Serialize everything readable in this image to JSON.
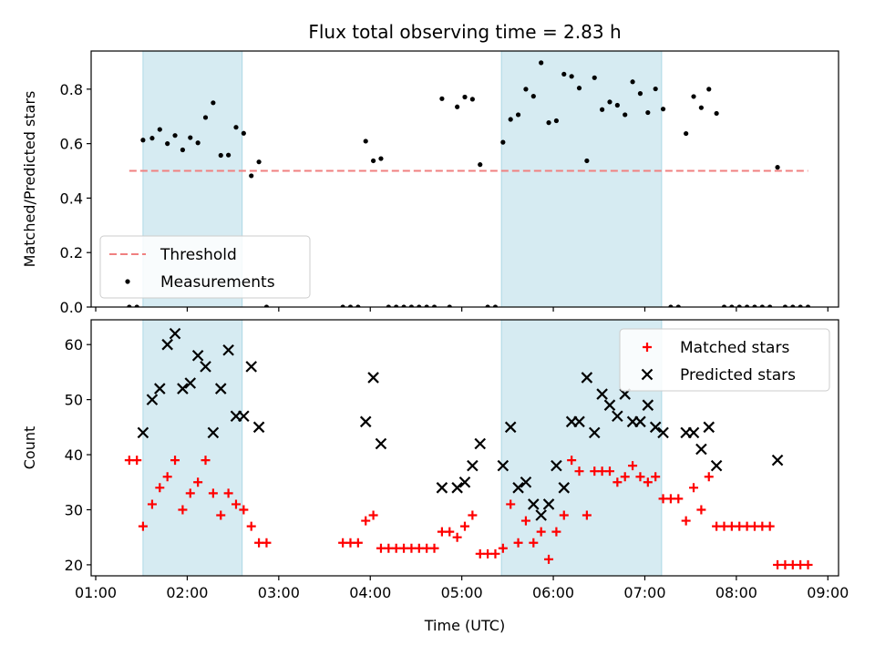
{
  "figure": {
    "title": "Flux total observing time = 2.83 h"
  },
  "chart_data": [
    {
      "type": "scatter",
      "title": "Flux total observing time = 2.83 h",
      "xlabel": "",
      "ylabel": "Matched/Predicted stars",
      "xlim": [
        "00:57",
        "09:07"
      ],
      "ylim": [
        0,
        0.94
      ],
      "xticks": [
        "01:00",
        "02:00",
        "03:00",
        "04:00",
        "05:00",
        "06:00",
        "07:00",
        "08:00",
        "09:00"
      ],
      "yticks": [
        "0.0",
        "0.2",
        "0.4",
        "0.6",
        "0.8"
      ],
      "shaded_intervals": [
        [
          "01:31",
          "02:36"
        ],
        [
          "05:26",
          "07:11"
        ]
      ],
      "legend": {
        "position": "lower-left",
        "entries": [
          "Threshold",
          "Measurements"
        ]
      },
      "series": [
        {
          "name": "Threshold",
          "style": "dashed-line",
          "color": "#f08080",
          "points": [
            [
              "01:22",
              0.5
            ],
            [
              "08:47",
              0.5
            ]
          ]
        },
        {
          "name": "Measurements",
          "style": "dot",
          "color": "#000000",
          "points": [
            [
              "01:22",
              0.0
            ],
            [
              "01:27",
              0.0
            ],
            [
              "01:31",
              0.613
            ],
            [
              "01:37",
              0.62
            ],
            [
              "01:42",
              0.652
            ],
            [
              "01:47",
              0.6
            ],
            [
              "01:52",
              0.63
            ],
            [
              "01:57",
              0.577
            ],
            [
              "02:02",
              0.622
            ],
            [
              "02:07",
              0.603
            ],
            [
              "02:12",
              0.696
            ],
            [
              "02:17",
              0.75
            ],
            [
              "02:22",
              0.557
            ],
            [
              "02:27",
              0.558
            ],
            [
              "02:32",
              0.66
            ],
            [
              "02:37",
              0.638
            ],
            [
              "02:42",
              0.482
            ],
            [
              "02:47",
              0.533
            ],
            [
              "02:52",
              0.0
            ],
            [
              "03:42",
              0.0
            ],
            [
              "03:47",
              0.0
            ],
            [
              "03:52",
              0.0
            ],
            [
              "03:57",
              0.609
            ],
            [
              "04:02",
              0.537
            ],
            [
              "04:07",
              0.545
            ],
            [
              "04:12",
              0.0
            ],
            [
              "04:17",
              0.0
            ],
            [
              "04:22",
              0.0
            ],
            [
              "04:27",
              0.0
            ],
            [
              "04:32",
              0.0
            ],
            [
              "04:37",
              0.0
            ],
            [
              "04:42",
              0.0
            ],
            [
              "04:47",
              0.765
            ],
            [
              "04:52",
              0.0
            ],
            [
              "04:57",
              0.735
            ],
            [
              "05:02",
              0.771
            ],
            [
              "05:07",
              0.763
            ],
            [
              "05:12",
              0.523
            ],
            [
              "05:17",
              0.0
            ],
            [
              "05:22",
              0.0
            ],
            [
              "05:27",
              0.605
            ],
            [
              "05:32",
              0.689
            ],
            [
              "05:37",
              0.706
            ],
            [
              "05:42",
              0.8
            ],
            [
              "05:47",
              0.774
            ],
            [
              "05:52",
              0.897
            ],
            [
              "05:57",
              0.677
            ],
            [
              "06:02",
              0.684
            ],
            [
              "06:07",
              0.855
            ],
            [
              "06:12",
              0.847
            ],
            [
              "06:17",
              0.804
            ],
            [
              "06:22",
              0.537
            ],
            [
              "06:27",
              0.842
            ],
            [
              "06:32",
              0.725
            ],
            [
              "06:37",
              0.753
            ],
            [
              "06:42",
              0.741
            ],
            [
              "06:47",
              0.706
            ],
            [
              "06:52",
              0.827
            ],
            [
              "06:57",
              0.784
            ],
            [
              "07:02",
              0.714
            ],
            [
              "07:07",
              0.801
            ],
            [
              "07:12",
              0.727
            ],
            [
              "07:17",
              0.0
            ],
            [
              "07:22",
              0.0
            ],
            [
              "07:27",
              0.637
            ],
            [
              "07:32",
              0.773
            ],
            [
              "07:37",
              0.732
            ],
            [
              "07:42",
              0.8
            ],
            [
              "07:47",
              0.711
            ],
            [
              "07:52",
              0.0
            ],
            [
              "07:57",
              0.0
            ],
            [
              "08:02",
              0.0
            ],
            [
              "08:07",
              0.0
            ],
            [
              "08:12",
              0.0
            ],
            [
              "08:17",
              0.0
            ],
            [
              "08:22",
              0.0
            ],
            [
              "08:27",
              0.513
            ],
            [
              "08:32",
              0.0
            ],
            [
              "08:37",
              0.0
            ],
            [
              "08:42",
              0.0
            ],
            [
              "08:47",
              0.0
            ]
          ]
        }
      ]
    },
    {
      "type": "scatter",
      "title": "",
      "xlabel": "Time (UTC)",
      "ylabel": "Count",
      "xlim": [
        "00:57",
        "09:07"
      ],
      "ylim": [
        18,
        64.5
      ],
      "xticks": [
        "01:00",
        "02:00",
        "03:00",
        "04:00",
        "05:00",
        "06:00",
        "07:00",
        "08:00",
        "09:00"
      ],
      "yticks": [
        "20",
        "30",
        "40",
        "50",
        "60"
      ],
      "shaded_intervals": [
        [
          "01:31",
          "02:36"
        ],
        [
          "05:26",
          "07:11"
        ]
      ],
      "legend": {
        "position": "top-right",
        "entries": [
          "Matched stars",
          "Predicted stars"
        ]
      },
      "series": [
        {
          "name": "Matched stars",
          "style": "plus",
          "color": "#ff0000",
          "points": [
            [
              "01:22",
              39
            ],
            [
              "01:27",
              39
            ],
            [
              "01:31",
              27
            ],
            [
              "01:37",
              31
            ],
            [
              "01:42",
              34
            ],
            [
              "01:47",
              36
            ],
            [
              "01:52",
              39
            ],
            [
              "01:57",
              30
            ],
            [
              "02:02",
              33
            ],
            [
              "02:07",
              35
            ],
            [
              "02:12",
              39
            ],
            [
              "02:17",
              33
            ],
            [
              "02:22",
              29
            ],
            [
              "02:27",
              33
            ],
            [
              "02:32",
              31
            ],
            [
              "02:37",
              30
            ],
            [
              "02:42",
              27
            ],
            [
              "02:47",
              24
            ],
            [
              "02:52",
              24
            ],
            [
              "03:42",
              24
            ],
            [
              "03:47",
              24
            ],
            [
              "03:52",
              24
            ],
            [
              "03:57",
              28
            ],
            [
              "04:02",
              29
            ],
            [
              "04:07",
              23
            ],
            [
              "04:12",
              23
            ],
            [
              "04:17",
              23
            ],
            [
              "04:22",
              23
            ],
            [
              "04:27",
              23
            ],
            [
              "04:32",
              23
            ],
            [
              "04:37",
              23
            ],
            [
              "04:42",
              23
            ],
            [
              "04:47",
              26
            ],
            [
              "04:52",
              26
            ],
            [
              "04:57",
              25
            ],
            [
              "05:02",
              27
            ],
            [
              "05:07",
              29
            ],
            [
              "05:12",
              22
            ],
            [
              "05:17",
              22
            ],
            [
              "05:22",
              22
            ],
            [
              "05:27",
              23
            ],
            [
              "05:32",
              31
            ],
            [
              "05:37",
              24
            ],
            [
              "05:42",
              28
            ],
            [
              "05:47",
              24
            ],
            [
              "05:52",
              26
            ],
            [
              "05:57",
              21
            ],
            [
              "06:02",
              26
            ],
            [
              "06:07",
              29
            ],
            [
              "06:12",
              39
            ],
            [
              "06:17",
              37
            ],
            [
              "06:22",
              29
            ],
            [
              "06:27",
              37
            ],
            [
              "06:32",
              37
            ],
            [
              "06:37",
              37
            ],
            [
              "06:42",
              35
            ],
            [
              "06:47",
              36
            ],
            [
              "06:52",
              38
            ],
            [
              "06:57",
              36
            ],
            [
              "07:02",
              35
            ],
            [
              "07:07",
              36
            ],
            [
              "07:12",
              32
            ],
            [
              "07:17",
              32
            ],
            [
              "07:22",
              32
            ],
            [
              "07:27",
              28
            ],
            [
              "07:32",
              34
            ],
            [
              "07:37",
              30
            ],
            [
              "07:42",
              36
            ],
            [
              "07:47",
              27
            ],
            [
              "07:52",
              27
            ],
            [
              "07:57",
              27
            ],
            [
              "08:02",
              27
            ],
            [
              "08:07",
              27
            ],
            [
              "08:12",
              27
            ],
            [
              "08:17",
              27
            ],
            [
              "08:22",
              27
            ],
            [
              "08:27",
              20
            ],
            [
              "08:32",
              20
            ],
            [
              "08:37",
              20
            ],
            [
              "08:42",
              20
            ],
            [
              "08:47",
              20
            ]
          ]
        },
        {
          "name": "Predicted stars",
          "style": "cross",
          "color": "#000000",
          "points": [
            [
              "01:31",
              44
            ],
            [
              "01:37",
              50
            ],
            [
              "01:42",
              52
            ],
            [
              "01:47",
              60
            ],
            [
              "01:52",
              62
            ],
            [
              "01:57",
              52
            ],
            [
              "02:02",
              53
            ],
            [
              "02:07",
              58
            ],
            [
              "02:12",
              56
            ],
            [
              "02:17",
              44
            ],
            [
              "02:22",
              52
            ],
            [
              "02:27",
              59
            ],
            [
              "02:32",
              47
            ],
            [
              "02:37",
              47
            ],
            [
              "02:42",
              56
            ],
            [
              "02:47",
              45
            ],
            [
              "03:57",
              46
            ],
            [
              "04:02",
              54
            ],
            [
              "04:07",
              42
            ],
            [
              "04:47",
              34
            ],
            [
              "04:57",
              34
            ],
            [
              "05:02",
              35
            ],
            [
              "05:07",
              38
            ],
            [
              "05:12",
              42
            ],
            [
              "05:27",
              38
            ],
            [
              "05:32",
              45
            ],
            [
              "05:37",
              34
            ],
            [
              "05:42",
              35
            ],
            [
              "05:47",
              31
            ],
            [
              "05:52",
              29
            ],
            [
              "05:57",
              31
            ],
            [
              "06:02",
              38
            ],
            [
              "06:07",
              34
            ],
            [
              "06:12",
              46
            ],
            [
              "06:17",
              46
            ],
            [
              "06:22",
              54
            ],
            [
              "06:27",
              44
            ],
            [
              "06:32",
              51
            ],
            [
              "06:37",
              49
            ],
            [
              "06:42",
              47
            ],
            [
              "06:47",
              51
            ],
            [
              "06:52",
              46
            ],
            [
              "06:57",
              46
            ],
            [
              "07:02",
              49
            ],
            [
              "07:07",
              45
            ],
            [
              "07:12",
              44
            ],
            [
              "07:27",
              44
            ],
            [
              "07:32",
              44
            ],
            [
              "07:37",
              41
            ],
            [
              "07:42",
              45
            ],
            [
              "07:47",
              38
            ],
            [
              "08:27",
              39
            ]
          ]
        }
      ]
    }
  ]
}
